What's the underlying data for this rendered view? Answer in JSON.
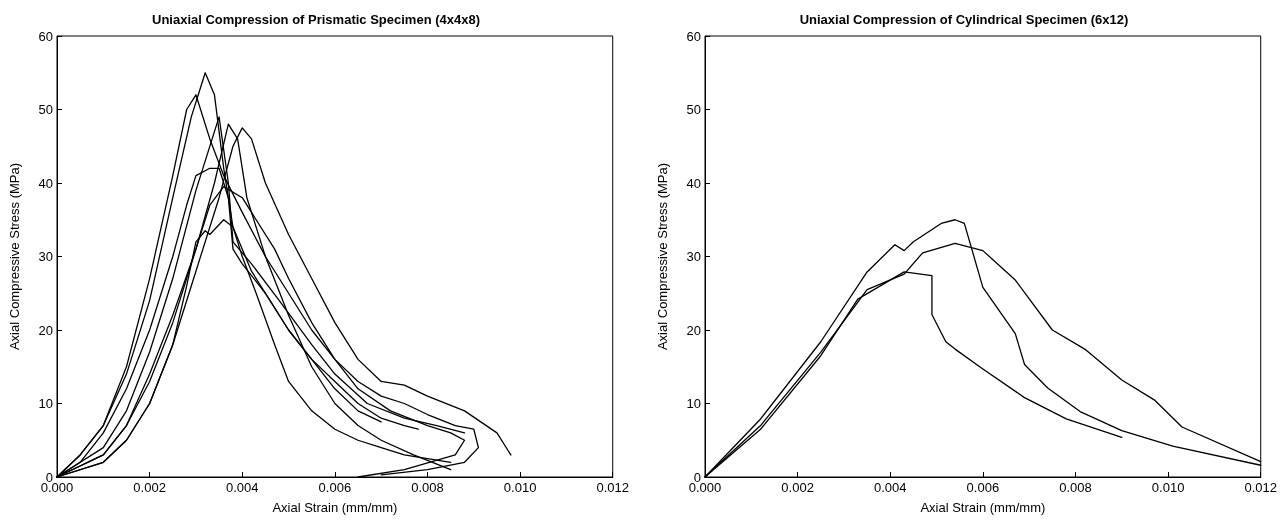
{
  "chart_data": [
    {
      "type": "line",
      "title": "Uniaxial Compression of Prismatic Specimen (4x4x8)",
      "xlabel": "Axial Strain (mm/mm)",
      "ylabel": "Axial Compressive Stress (MPa)",
      "xlim": [
        0,
        0.012
      ],
      "ylim": [
        0,
        60
      ],
      "xticks": [
        {
          "value": 0,
          "label": "0.000"
        },
        {
          "value": 0.002,
          "label": "0.002"
        },
        {
          "value": 0.004,
          "label": "0.004"
        },
        {
          "value": 0.006,
          "label": "0.006"
        },
        {
          "value": 0.008,
          "label": "0.008"
        },
        {
          "value": 0.01,
          "label": "0.010"
        },
        {
          "value": 0.012,
          "label": "0.012"
        }
      ],
      "yticks": [
        0,
        10,
        20,
        30,
        40,
        50,
        60
      ],
      "grid": false,
      "marker": "none",
      "line_style": "solid",
      "series": [
        {
          "color": "#000000",
          "x": [
            0,
            0.0005,
            0.001,
            0.0015,
            0.002,
            0.0025,
            0.0029,
            0.0032,
            0.0034,
            0.0036,
            0.0038,
            0.0042,
            0.0046,
            0.005,
            0.0055,
            0.006,
            0.0065,
            0.007
          ],
          "values": [
            0,
            3,
            7,
            14,
            24,
            38,
            49,
            55,
            52,
            42,
            34,
            28,
            24,
            20,
            16,
            12,
            9,
            7.5
          ]
        },
        {
          "color": "#000000",
          "x": [
            0,
            0.0005,
            0.001,
            0.0015,
            0.002,
            0.0025,
            0.0028,
            0.003,
            0.0031,
            0.0033,
            0.0036,
            0.004,
            0.0045,
            0.005,
            0.0055,
            0.006,
            0.0065,
            0.007,
            0.0077,
            0.0085
          ],
          "values": [
            0,
            3,
            7,
            15,
            27,
            41,
            50,
            52,
            50,
            46,
            41,
            36,
            30,
            22,
            15,
            10,
            7,
            5,
            3,
            1
          ]
        },
        {
          "color": "#000000",
          "x": [
            0,
            0.001,
            0.0015,
            0.002,
            0.0025,
            0.003,
            0.0035,
            0.0037,
            0.0038,
            0.0042,
            0.0048,
            0.0055,
            0.006,
            0.0067,
            0.0075,
            0.0082,
            0.0088
          ],
          "values": [
            0,
            4,
            9,
            17,
            27,
            39,
            49,
            40,
            32,
            29,
            24,
            18,
            14,
            10,
            8,
            7,
            6
          ]
        },
        {
          "color": "#000000",
          "x": [
            0,
            0.001,
            0.0015,
            0.002,
            0.0025,
            0.003,
            0.0034,
            0.0037,
            0.0039,
            0.0041,
            0.0045,
            0.005,
            0.0055,
            0.006,
            0.0065,
            0.007,
            0.0075,
            0.008,
            0.0086,
            0.009,
            0.0091,
            0.0088,
            0.008,
            0.007
          ],
          "values": [
            0,
            3,
            7,
            14,
            22,
            31,
            40,
            48,
            46,
            38,
            30,
            25,
            20,
            16,
            13,
            11,
            10,
            8.5,
            7,
            6.5,
            4,
            2,
            1,
            0.3
          ]
        },
        {
          "color": "#000000",
          "x": [
            0,
            0.001,
            0.0015,
            0.002,
            0.0025,
            0.003,
            0.0035,
            0.0038,
            0.004,
            0.0042,
            0.0045,
            0.005,
            0.0055,
            0.006,
            0.0065,
            0.007,
            0.0075,
            0.008,
            0.0088,
            0.0095,
            0.0098
          ],
          "values": [
            0,
            2,
            5,
            10,
            18,
            28,
            38,
            45,
            47.5,
            46,
            40,
            33,
            27,
            21,
            16,
            13,
            12.5,
            11,
            9,
            6,
            3
          ]
        },
        {
          "color": "#000000",
          "x": [
            0,
            0.0005,
            0.001,
            0.0015,
            0.002,
            0.0025,
            0.0028,
            0.003,
            0.0033,
            0.0035,
            0.0037,
            0.0038,
            0.004,
            0.0045,
            0.005,
            0.0055,
            0.006,
            0.0065,
            0.007,
            0.0075,
            0.0078
          ],
          "values": [
            0,
            2,
            6,
            12,
            20,
            30,
            37,
            41,
            42,
            42,
            38,
            31,
            29,
            25,
            20,
            16,
            13,
            10,
            8,
            7,
            6.5
          ]
        },
        {
          "color": "#000000",
          "x": [
            0,
            0.001,
            0.0015,
            0.002,
            0.0025,
            0.003,
            0.0033,
            0.0036,
            0.004,
            0.0043,
            0.0047,
            0.005,
            0.0055,
            0.006,
            0.0065,
            0.0072,
            0.008,
            0.0085,
            0.0088,
            0.0086,
            0.0075,
            0.0065
          ],
          "values": [
            0,
            3,
            7,
            13,
            21,
            31,
            37,
            39.5,
            38,
            35,
            31,
            27,
            21,
            16,
            12,
            9,
            7,
            6,
            5,
            3,
            1,
            0
          ]
        },
        {
          "color": "#000000",
          "x": [
            0,
            0.001,
            0.0015,
            0.002,
            0.0025,
            0.0028,
            0.003,
            0.0032,
            0.0033,
            0.0036,
            0.0038,
            0.004,
            0.0043,
            0.0047,
            0.005,
            0.0055,
            0.006,
            0.0065,
            0.007,
            0.0075,
            0.008,
            0.0085
          ],
          "values": [
            0,
            2,
            5,
            10,
            18,
            26,
            32,
            33.5,
            33,
            35,
            34,
            30,
            25,
            18,
            13,
            9,
            6.5,
            5,
            4,
            3,
            2.5,
            2
          ]
        }
      ]
    },
    {
      "type": "line",
      "title": "Uniaxial Compression of Cylindrical Specimen (6x12)",
      "xlabel": "Axial Strain (mm/mm)",
      "ylabel": "Axial Compressive Stress (MPa)",
      "xlim": [
        0,
        0.012
      ],
      "ylim": [
        0,
        60
      ],
      "xticks": [
        {
          "value": 0,
          "label": "0.000"
        },
        {
          "value": 0.002,
          "label": "0.002"
        },
        {
          "value": 0.004,
          "label": "0.004"
        },
        {
          "value": 0.006,
          "label": "0.006"
        },
        {
          "value": 0.008,
          "label": "0.008"
        },
        {
          "value": 0.01,
          "label": "0.010"
        },
        {
          "value": 0.012,
          "label": "0.012"
        }
      ],
      "yticks": [
        0,
        10,
        20,
        30,
        40,
        50,
        60
      ],
      "grid": false,
      "marker": "none",
      "line_style": "solid",
      "series": [
        {
          "color": "#000000",
          "x": [
            0,
            0.0012,
            0.0025,
            0.0035,
            0.0041,
            0.0043,
            0.0045,
            0.0051,
            0.0054,
            0.0056,
            0.006,
            0.0067,
            0.0069,
            0.0074,
            0.0081,
            0.009,
            0.0101,
            0.012
          ],
          "values": [
            0,
            7.9,
            18.4,
            27.9,
            31.6,
            30.8,
            32,
            34.5,
            35,
            34.5,
            25.8,
            19.5,
            15.3,
            12.1,
            8.9,
            6.3,
            4.2,
            1.6
          ]
        },
        {
          "color": "#000000",
          "x": [
            0,
            0.0012,
            0.0025,
            0.0035,
            0.0043,
            0.0047,
            0.0054,
            0.006,
            0.0067,
            0.0075,
            0.0082,
            0.009,
            0.0097,
            0.0103,
            0.012
          ],
          "values": [
            0,
            7,
            17,
            25.5,
            27.6,
            30.5,
            31.8,
            30.8,
            26.8,
            20,
            17.4,
            13.2,
            10.5,
            6.8,
            2.1
          ]
        },
        {
          "color": "#000000",
          "x": [
            0,
            0.0012,
            0.0025,
            0.0033,
            0.0043,
            0.0049,
            0.0049,
            0.0052,
            0.0054,
            0.006,
            0.0069,
            0.0078,
            0.009
          ],
          "values": [
            0,
            6.5,
            16.5,
            24.2,
            27.9,
            27.4,
            22.1,
            18.4,
            17.4,
            14.7,
            10.8,
            7.9,
            5.4
          ]
        }
      ]
    }
  ]
}
